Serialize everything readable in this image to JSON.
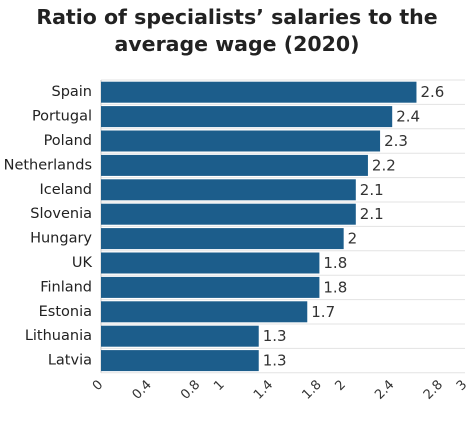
{
  "chart_data": {
    "type": "bar",
    "orientation": "horizontal",
    "title": "Ratio of specialists’ salaries to the average wage (2020)",
    "categories": [
      "Spain",
      "Portugal",
      "Poland",
      "Netherlands",
      "Iceland",
      "Slovenia",
      "Hungary",
      "UK",
      "Finland",
      "Estonia",
      "Lithuania",
      "Latvia"
    ],
    "values": [
      2.6,
      2.4,
      2.3,
      2.2,
      2.1,
      2.1,
      2,
      1.8,
      1.8,
      1.7,
      1.3,
      1.3
    ],
    "value_labels": [
      "2.6",
      "2.4",
      "2.3",
      "2.2",
      "2.1",
      "2.1",
      "2",
      "1.8",
      "1.8",
      "1.7",
      "1.3",
      "1.3"
    ],
    "xticks": [
      "0",
      "0.4",
      "0.8",
      "1",
      "1.4",
      "1.8",
      "2",
      "2.4",
      "2.8",
      "3"
    ],
    "xlim": [
      0,
      3
    ],
    "xlabel": "",
    "ylabel": "",
    "grid": true,
    "legend": "none",
    "bar_color": "#1c5d8b"
  }
}
